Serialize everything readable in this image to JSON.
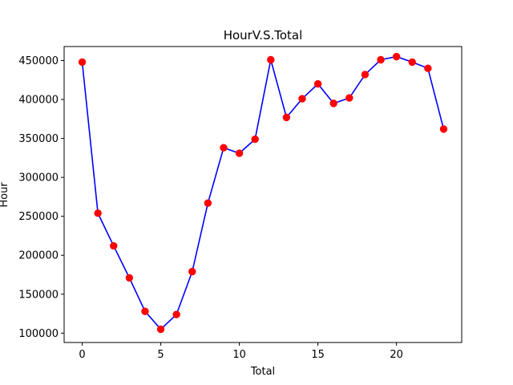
{
  "chart_data": {
    "type": "line",
    "title": "HourV.S.Total",
    "xlabel": "Total",
    "ylabel": "Hour",
    "xlim": [
      -1.15,
      24.15
    ],
    "ylim": [
      88000,
      468000
    ],
    "xticks": [
      0,
      5,
      10,
      15,
      20
    ],
    "yticks": [
      100000,
      150000,
      200000,
      250000,
      300000,
      350000,
      400000,
      450000
    ],
    "xtick_labels": [
      "0",
      "5",
      "10",
      "15",
      "20"
    ],
    "ytick_labels": [
      "100000",
      "150000",
      "200000",
      "250000",
      "300000",
      "350000",
      "400000",
      "450000"
    ],
    "grid": false,
    "series": [
      {
        "line_color": "#0000ff",
        "marker_color": "#ff0000",
        "marker": "circle",
        "x": [
          0,
          1,
          2,
          3,
          4,
          5,
          6,
          7,
          8,
          9,
          10,
          11,
          12,
          13,
          14,
          15,
          16,
          17,
          18,
          19,
          20,
          21,
          22,
          23
        ],
        "y": [
          448000,
          254000,
          212000,
          171000,
          128000,
          105000,
          124000,
          179000,
          267000,
          338000,
          331000,
          349000,
          451000,
          377000,
          401000,
          420000,
          395000,
          402000,
          432000,
          451000,
          455000,
          448000,
          440000,
          362000
        ]
      }
    ]
  }
}
